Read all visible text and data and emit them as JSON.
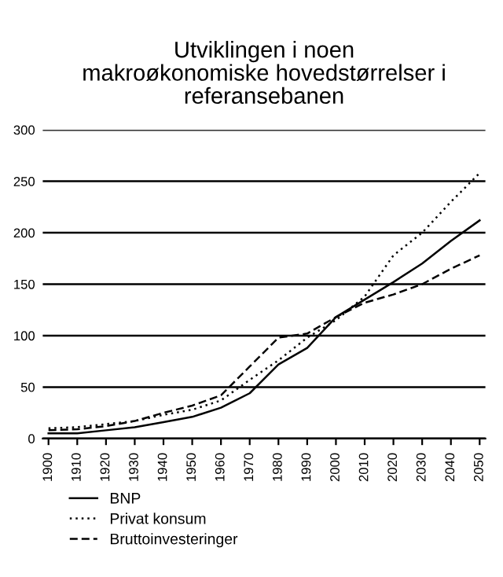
{
  "chart_data": {
    "type": "line",
    "title": "Utviklingen i noen\nmakroøkonomiske hovedstørrelser i\nreferansebanen",
    "x": [
      1900,
      1910,
      1920,
      1930,
      1940,
      1950,
      1960,
      1970,
      1980,
      1990,
      2000,
      2010,
      2020,
      2030,
      2040,
      2050
    ],
    "series": [
      {
        "name": "BNP",
        "color": "#000000",
        "line_style": "solid",
        "values": [
          5,
          5,
          8,
          11,
          16,
          21,
          30,
          44,
          72,
          88,
          118,
          135,
          152,
          170,
          192,
          212
        ]
      },
      {
        "name": "Privat konsum",
        "color": "#000000",
        "line_style": "dotted",
        "values": [
          10,
          11,
          14,
          17,
          23,
          28,
          37,
          57,
          76,
          98,
          115,
          138,
          178,
          200,
          230,
          258
        ]
      },
      {
        "name": "Bruttoinvesteringer",
        "color": "#000000",
        "line_style": "dashed",
        "values": [
          8,
          9,
          12,
          17,
          25,
          32,
          42,
          70,
          98,
          102,
          118,
          132,
          140,
          150,
          165,
          178
        ]
      }
    ],
    "xlim": [
      1898,
      2052
    ],
    "xticks": [
      1900,
      1910,
      1920,
      1930,
      1940,
      1950,
      1960,
      1970,
      1980,
      1990,
      2000,
      2010,
      2020,
      2030,
      2040,
      2050
    ],
    "ylim": [
      0,
      300
    ],
    "yticks": [
      0,
      50,
      100,
      150,
      200,
      250,
      300
    ],
    "grid": "y",
    "legend": "bottom"
  }
}
